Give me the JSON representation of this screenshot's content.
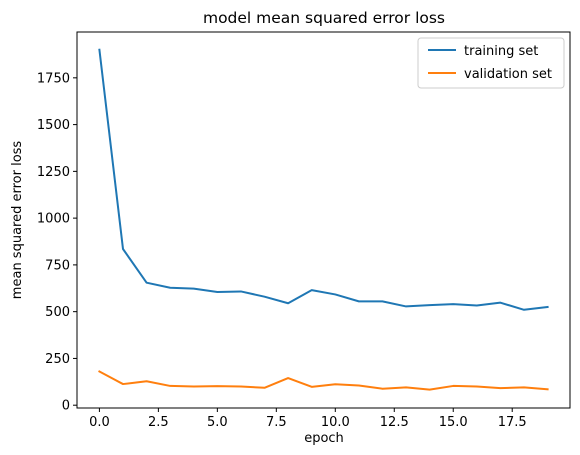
{
  "chart_data": {
    "type": "line",
    "title": "model mean squared error loss",
    "xlabel": "epoch",
    "ylabel": "mean squared error loss",
    "xlim": [
      -0.95,
      19.95
    ],
    "ylim": [
      -15,
      1995
    ],
    "xticks": [
      0,
      2.5,
      5,
      7.5,
      10,
      12.5,
      15,
      17.5
    ],
    "xtick_labels": [
      "0.0",
      "2.5",
      "5.0",
      "7.5",
      "10.0",
      "12.5",
      "15.0",
      "17.5"
    ],
    "yticks": [
      0,
      250,
      500,
      750,
      1000,
      1250,
      1500,
      1750
    ],
    "ytick_labels": [
      "0",
      "250",
      "500",
      "750",
      "1000",
      "1250",
      "1500",
      "1750"
    ],
    "grid": false,
    "legend_position": "top-right",
    "x": [
      0,
      1,
      2,
      3,
      4,
      5,
      6,
      7,
      8,
      9,
      10,
      11,
      12,
      13,
      14,
      15,
      16,
      17,
      18,
      19
    ],
    "series": [
      {
        "name": "training set",
        "color": "#1f77b4",
        "values": [
          1900,
          835,
          655,
          628,
          623,
          605,
          608,
          580,
          545,
          615,
          592,
          555,
          555,
          528,
          535,
          540,
          533,
          548,
          510,
          525
        ]
      },
      {
        "name": "validation set",
        "color": "#ff7f0e",
        "values": [
          180,
          113,
          128,
          103,
          100,
          102,
          100,
          93,
          145,
          98,
          112,
          105,
          88,
          95,
          83,
          103,
          100,
          91,
          95,
          85
        ]
      }
    ]
  }
}
